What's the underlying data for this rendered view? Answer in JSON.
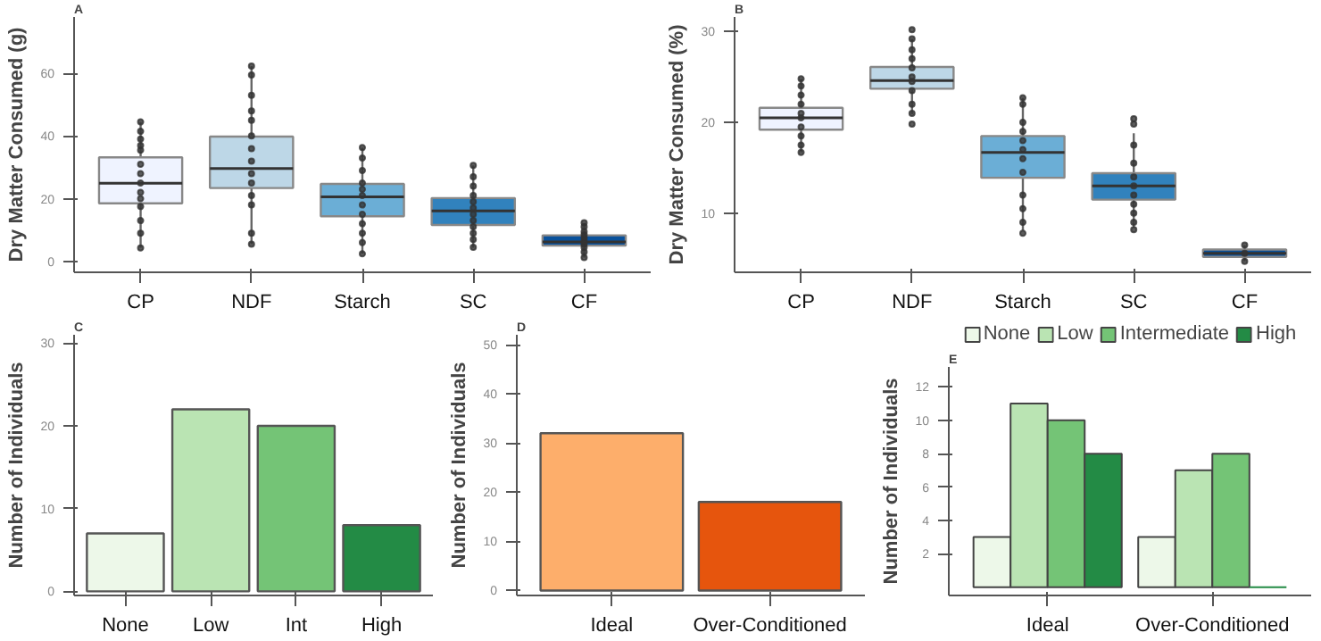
{
  "chart_data": [
    {
      "type": "box",
      "title": "A",
      "ylabel": "Dry Matter Consumed (g)",
      "categories": [
        "CP",
        "NDF",
        "Starch",
        "SC",
        "CF"
      ],
      "colors": [
        "#eff3ff",
        "#bdd7e7",
        "#6baed6",
        "#3182bd",
        "#08519c"
      ],
      "boxes": [
        {
          "low": 4.3,
          "q1": 18.5,
          "median": 24.9,
          "q3": 33.2,
          "high": 44.5
        },
        {
          "low": 5.5,
          "q1": 23.4,
          "median": 29.6,
          "q3": 39.8,
          "high": 62.3
        },
        {
          "low": 2.4,
          "q1": 14.4,
          "median": 20.6,
          "q3": 24.7,
          "high": 36.3
        },
        {
          "low": 4.3,
          "q1": 11.6,
          "median": 16.1,
          "q3": 20.2,
          "high": 30.6
        },
        {
          "low": 1.2,
          "q1": 5.0,
          "median": 6.2,
          "q3": 8.3,
          "high": 12.3
        }
      ],
      "series": [
        {
          "type": "scatter",
          "color": "#333333",
          "marker": "circle",
          "x": [
            "CP",
            "CP",
            "CP",
            "CP",
            "CP",
            "CP",
            "CP",
            "CP",
            "CP",
            "CP",
            "CP",
            "CP",
            "CP",
            "CP",
            "NDF",
            "NDF",
            "NDF",
            "NDF",
            "NDF",
            "NDF",
            "NDF",
            "NDF",
            "NDF",
            "NDF",
            "NDF",
            "NDF",
            "NDF",
            "NDF",
            "Starch",
            "Starch",
            "Starch",
            "Starch",
            "Starch",
            "Starch",
            "Starch",
            "Starch",
            "Starch",
            "Starch",
            "Starch",
            "Starch",
            "SC",
            "SC",
            "SC",
            "SC",
            "SC",
            "SC",
            "SC",
            "SC",
            "SC",
            "SC",
            "SC",
            "SC",
            "CF",
            "CF",
            "CF",
            "CF",
            "CF",
            "CF",
            "CF",
            "CF",
            "CF",
            "CF"
          ],
          "values": [
            44.5,
            41.5,
            39,
            37,
            35.5,
            31,
            28,
            25,
            22,
            20,
            17.5,
            13,
            9,
            4.3,
            62.3,
            59.5,
            53,
            48,
            45,
            40,
            36,
            32,
            28,
            25,
            21,
            18,
            9,
            5.5,
            36.3,
            33,
            29,
            25,
            23,
            21,
            18,
            15,
            12,
            9,
            6,
            2.4,
            30.6,
            27,
            24,
            21,
            19,
            17,
            15,
            13,
            11,
            9,
            7,
            4.5,
            12.3,
            11,
            9.5,
            8.5,
            7.5,
            6.5,
            5.5,
            4.5,
            3,
            1.2
          ]
        }
      ],
      "ylim": [
        -3.5,
        78
      ],
      "yticks": [
        0,
        20,
        40,
        60
      ],
      "grid": false
    },
    {
      "type": "box",
      "title": "B",
      "ylabel": "Dry Matter Consumed (%)",
      "categories": [
        "CP",
        "NDF",
        "Starch",
        "SC",
        "CF"
      ],
      "colors": [
        "#eff3ff",
        "#bdd7e7",
        "#6baed6",
        "#3182bd",
        "#08519c"
      ],
      "boxes": [
        {
          "low": 16.7,
          "q1": 19.2,
          "median": 20.5,
          "q3": 21.6,
          "high": 24.8
        },
        {
          "low": 20.9,
          "q1": 23.7,
          "median": 24.6,
          "q3": 26.1,
          "high": 29.2
        },
        {
          "low": 8.1,
          "q1": 13.9,
          "median": 16.7,
          "q3": 18.5,
          "high": 22.7
        },
        {
          "low": 8.4,
          "q1": 11.5,
          "median": 13.0,
          "q3": 14.4,
          "high": 18.8
        },
        {
          "low": 4.7,
          "q1": 5.2,
          "median": 5.6,
          "q3": 6.0,
          "high": 6.5
        }
      ],
      "series": [
        {
          "type": "scatter",
          "color": "#333333",
          "marker": "circle",
          "x": [
            "CP",
            "CP",
            "CP",
            "CP",
            "CP",
            "CP",
            "CP",
            "CP",
            "CP",
            "CP",
            "NDF",
            "NDF",
            "NDF",
            "NDF",
            "NDF",
            "NDF",
            "NDF",
            "NDF",
            "NDF",
            "NDF",
            "NDF",
            "Starch",
            "Starch",
            "Starch",
            "Starch",
            "Starch",
            "Starch",
            "Starch",
            "Starch",
            "Starch",
            "Starch",
            "Starch",
            "Starch",
            "SC",
            "SC",
            "SC",
            "SC",
            "SC",
            "SC",
            "SC",
            "SC",
            "SC",
            "SC",
            "SC",
            "CF",
            "CF",
            "CF"
          ],
          "values": [
            24.8,
            24,
            23,
            22,
            21,
            20.5,
            19.5,
            18.5,
            17.5,
            16.7,
            30.2,
            29.2,
            28,
            27,
            26,
            25,
            24.5,
            23.5,
            22,
            21,
            19.8,
            22.7,
            22,
            20,
            19,
            18,
            17,
            16,
            14.5,
            12,
            10.5,
            9,
            7.8,
            20.4,
            19.8,
            17.5,
            15.5,
            14,
            13,
            12,
            11,
            10,
            9,
            8.2,
            6.5,
            5.6,
            4.7
          ]
        }
      ],
      "ylim": [
        3.5,
        31.6
      ],
      "yticks": [
        10,
        20,
        30
      ],
      "grid": false
    },
    {
      "type": "bar",
      "title": "C",
      "ylabel": "Number of Individuals",
      "categories": [
        "None",
        "Low",
        "Int",
        "High"
      ],
      "values": [
        7,
        22,
        20,
        8
      ],
      "colors": [
        "#edf8e9",
        "#bae4b3",
        "#74c476",
        "#238b45"
      ],
      "ylim": [
        -0.5,
        31
      ],
      "yticks": [
        0,
        10,
        20,
        30
      ],
      "grid": false
    },
    {
      "type": "bar",
      "title": "D",
      "ylabel": "Number of Individuals",
      "categories": [
        "Ideal",
        "Over-Conditioned"
      ],
      "values": [
        32,
        18
      ],
      "colors": [
        "#fdae6b",
        "#e6550d"
      ],
      "ylim": [
        -1,
        52
      ],
      "yticks": [
        0,
        10,
        20,
        30,
        40,
        50
      ],
      "grid": false
    },
    {
      "type": "bar",
      "title": "E",
      "ylabel": "Number of Individuals",
      "categories": [
        "Ideal",
        "Over-Conditioned"
      ],
      "legend": "top",
      "series": [
        {
          "name": "None",
          "color": "#edf8e9",
          "values": [
            3,
            3
          ]
        },
        {
          "name": "Low",
          "color": "#bae4b3",
          "values": [
            11,
            7
          ]
        },
        {
          "name": "Intermediate",
          "color": "#74c476",
          "values": [
            10,
            8
          ]
        },
        {
          "name": "High",
          "color": "#238b45",
          "values": [
            8,
            0
          ]
        }
      ],
      "ylim": [
        -0.5,
        13.2
      ],
      "yticks": [
        2,
        4,
        6,
        8,
        10,
        12
      ],
      "grid": false
    }
  ]
}
